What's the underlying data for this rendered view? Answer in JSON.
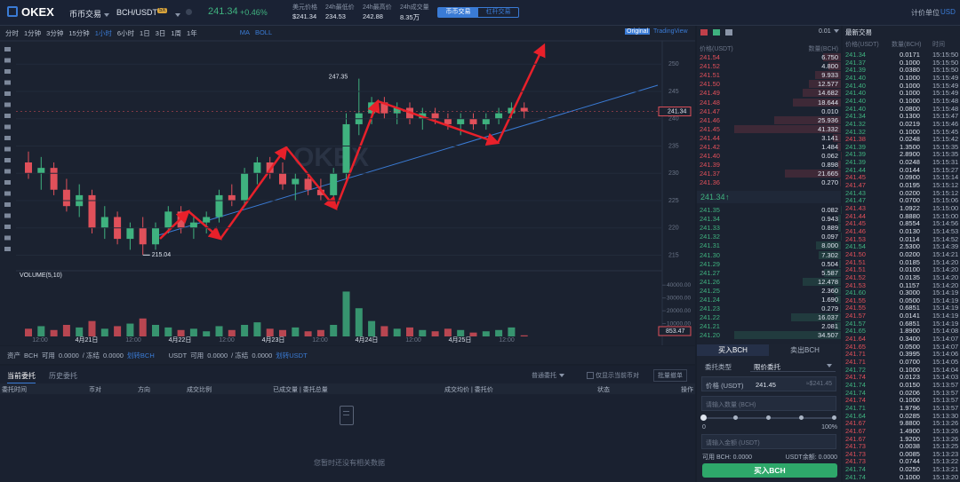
{
  "header": {
    "logo": "OKEX",
    "market": "币币交易",
    "pair": "BCH/USDT",
    "leverage": "5X",
    "price": "241.34",
    "change": "+0.46%",
    "stats": [
      {
        "label": "美元价格",
        "value": "$241.34"
      },
      {
        "label": "24h最低价",
        "value": "234.53"
      },
      {
        "label": "24h最高价",
        "value": "242.88"
      },
      {
        "label": "24h成交量",
        "value": "8.35万"
      }
    ],
    "tabs": [
      "币币交易",
      "杠杆交易"
    ],
    "unit_label": "计价单位",
    "unit": "USD"
  },
  "toolbar": {
    "intervals": [
      "分时",
      "1分钟",
      "3分钟",
      "15分钟",
      "1小时",
      "6小时",
      "1日",
      "3日",
      "1周",
      "1年"
    ],
    "indicators": [
      "MA",
      "BOLL"
    ],
    "views": [
      "Original",
      "TradingView"
    ]
  },
  "chart": {
    "watermark": "OKEX",
    "up_color": "#3fb27f",
    "down_color": "#e0505a",
    "ylim": [
      212,
      252
    ],
    "yticks": [
      215,
      220,
      225,
      230,
      235,
      240,
      245,
      250
    ],
    "candles": [
      [
        232,
        234,
        229,
        230
      ],
      [
        230,
        233,
        227,
        231
      ],
      [
        231,
        232,
        226,
        227
      ],
      [
        227,
        229,
        223,
        224
      ],
      [
        224,
        228,
        222,
        226
      ],
      [
        226,
        227,
        219,
        220
      ],
      [
        220,
        224,
        218,
        222
      ],
      [
        222,
        223,
        217,
        218
      ],
      [
        218,
        221,
        216,
        220
      ],
      [
        220,
        222,
        215.04,
        217
      ],
      [
        217,
        221,
        216,
        220
      ],
      [
        220,
        224,
        219,
        223
      ],
      [
        223,
        224,
        219,
        220
      ],
      [
        220,
        222,
        218,
        221
      ],
      [
        221,
        223,
        219,
        222
      ],
      [
        222,
        227,
        221,
        226
      ],
      [
        226,
        228,
        224,
        225
      ],
      [
        225,
        231,
        224,
        230
      ],
      [
        230,
        233,
        228,
        232
      ],
      [
        232,
        233,
        229,
        230
      ],
      [
        230,
        232,
        227,
        228
      ],
      [
        228,
        230,
        225,
        229
      ],
      [
        229,
        230,
        226,
        227
      ],
      [
        227,
        229,
        225,
        226
      ],
      [
        226,
        231,
        225,
        230
      ],
      [
        230,
        241,
        229,
        239
      ],
      [
        239,
        247.35,
        237,
        241
      ],
      [
        241,
        244,
        239,
        243
      ],
      [
        243,
        244,
        240,
        241
      ],
      [
        241,
        243,
        239,
        242
      ],
      [
        242,
        243,
        239,
        240
      ],
      [
        240,
        242,
        238,
        241
      ],
      [
        241,
        242,
        239,
        240
      ],
      [
        240,
        241,
        238,
        239
      ],
      [
        239,
        241,
        237,
        240
      ],
      [
        240,
        241,
        238,
        239
      ],
      [
        239,
        241,
        238,
        240
      ],
      [
        240,
        242,
        239,
        241
      ],
      [
        241,
        243,
        240,
        242
      ],
      [
        242,
        243,
        240,
        241.34
      ]
    ],
    "volume_label": "VOLUME(5,10)",
    "vlim": [
      0,
      45000
    ],
    "vticks": [
      {
        "value": 10000,
        "label": "10000.00"
      },
      {
        "value": 20000,
        "label": "20000.00"
      },
      {
        "value": 30000,
        "label": "30000.00"
      },
      {
        "value": 40000,
        "label": "40000.00"
      }
    ],
    "volumes": [
      6000,
      8000,
      5000,
      9000,
      7000,
      12000,
      6000,
      8000,
      10000,
      14000,
      9000,
      7000,
      5000,
      6000,
      4000,
      8000,
      5000,
      9000,
      11000,
      6000,
      5000,
      7000,
      4000,
      5000,
      9000,
      35000,
      22000,
      12000,
      8000,
      6000,
      7000,
      5000,
      4000,
      6000,
      5000,
      3000,
      4000,
      5000,
      7000,
      853.47
    ],
    "x_labels": [
      "12:00",
      "4月21日",
      "12:00",
      "4月22日",
      "12:00",
      "4月23日",
      "12:00",
      "4月24日",
      "12:00",
      "4月25日",
      "12:00"
    ]
  },
  "assets": [
    "资产",
    "BCH",
    "可用",
    "0.0000",
    "/ 冻结",
    "0.0000",
    "划转BCH",
    "USDT",
    "可用",
    "0.0000",
    "/ 冻结",
    "0.0000",
    "划转USDT"
  ],
  "orders": {
    "tabs": [
      "当前委托",
      "历史委托"
    ],
    "filter": "普通委托",
    "only_current": "仅显示当前币对",
    "batch_cancel": "批量撤单",
    "columns": [
      "委托时间",
      "币对",
      "方向",
      "成交比例",
      "已成交量 | 委托总量",
      "成交均价 | 委托价",
      "状态",
      "操作"
    ],
    "empty": "您暂时还没有相关数据"
  },
  "order_book": {
    "precision": "0.01",
    "columns": [
      "价格(USDT)",
      "数量(BCH)"
    ],
    "asks": [
      [
        "241.54",
        "6.750"
      ],
      [
        "241.52",
        "4.800"
      ],
      [
        "241.51",
        "9.933"
      ],
      [
        "241.50",
        "12.577"
      ],
      [
        "241.49",
        "14.682"
      ],
      [
        "241.48",
        "18.644"
      ],
      [
        "241.47",
        "0.010"
      ],
      [
        "241.46",
        "25.936"
      ],
      [
        "241.45",
        "41.332"
      ],
      [
        "241.44",
        "3.141"
      ],
      [
        "241.42",
        "1.484"
      ],
      [
        "241.40",
        "0.062"
      ],
      [
        "241.39",
        "0.898"
      ],
      [
        "241.37",
        "21.665"
      ],
      [
        "241.36",
        "0.270"
      ]
    ],
    "last": "241.34",
    "last_arrow": "↑",
    "bids": [
      [
        "241.35",
        "0.082"
      ],
      [
        "241.34",
        "0.943"
      ],
      [
        "241.33",
        "0.889"
      ],
      [
        "241.32",
        "0.097"
      ],
      [
        "241.31",
        "8.000"
      ],
      [
        "241.30",
        "7.302"
      ],
      [
        "241.29",
        "0.504"
      ],
      [
        "241.27",
        "5.587"
      ],
      [
        "241.26",
        "12.478"
      ],
      [
        "241.25",
        "2.360"
      ],
      [
        "241.24",
        "1.690"
      ],
      [
        "241.23",
        "0.279"
      ],
      [
        "241.22",
        "16.037"
      ],
      [
        "241.21",
        "2.081"
      ],
      [
        "241.20",
        "34.507"
      ]
    ]
  },
  "trade_form": {
    "tabs": [
      "买入BCH",
      "卖出BCH"
    ],
    "type_label": "委托类型",
    "type_value": "限价委托",
    "price_label": "价格 (USDT)",
    "price_value": "241.45",
    "price_usd": "≈$241.45",
    "amount_placeholder": "请输入数量 (BCH)",
    "slider_min": "0",
    "slider_max": "100%",
    "total_placeholder": "请输入金额 (USDT)",
    "available": "可用 BCH: 0.0000",
    "balance": "USDT余额: 0.0000",
    "submit": "买入BCH"
  },
  "trades": {
    "title": "最新交易",
    "columns": [
      "价格(USDT)",
      "数量(BCH)",
      "时间"
    ],
    "buy_color": "#3fb27f",
    "sell_color": "#e0505a",
    "rows": [
      [
        "241.34",
        "0.0171",
        "15:15:50",
        "buy"
      ],
      [
        "241.37",
        "0.1000",
        "15:15:50",
        "buy"
      ],
      [
        "241.39",
        "0.0380",
        "15:15:50",
        "buy"
      ],
      [
        "241.40",
        "0.1000",
        "15:15:49",
        "buy"
      ],
      [
        "241.40",
        "0.1000",
        "15:15:49",
        "buy"
      ],
      [
        "241.40",
        "0.1000",
        "15:15:49",
        "buy"
      ],
      [
        "241.40",
        "0.1000",
        "15:15:48",
        "buy"
      ],
      [
        "241.40",
        "0.0800",
        "15:15:48",
        "buy"
      ],
      [
        "241.34",
        "0.1300",
        "15:15:47",
        "buy"
      ],
      [
        "241.32",
        "0.0219",
        "15:15:46",
        "buy"
      ],
      [
        "241.32",
        "0.1000",
        "15:15:45",
        "buy"
      ],
      [
        "241.38",
        "0.0248",
        "15:15:42",
        "sell"
      ],
      [
        "241.39",
        "1.3500",
        "15:15:35",
        "buy"
      ],
      [
        "241.39",
        "2.8900",
        "15:15:35",
        "buy"
      ],
      [
        "241.39",
        "0.0248",
        "15:15:31",
        "buy"
      ],
      [
        "241.44",
        "0.0144",
        "15:15:27",
        "buy"
      ],
      [
        "241.45",
        "0.0900",
        "15:15:14",
        "sell"
      ],
      [
        "241.47",
        "0.0195",
        "15:15:12",
        "sell"
      ],
      [
        "241.43",
        "0.0200",
        "15:15:12",
        "buy"
      ],
      [
        "241.47",
        "0.0700",
        "15:15:06",
        "buy"
      ],
      [
        "241.43",
        "1.0922",
        "15:15:00",
        "sell"
      ],
      [
        "241.44",
        "0.8880",
        "15:15:00",
        "sell"
      ],
      [
        "241.45",
        "0.8554",
        "15:14:56",
        "sell"
      ],
      [
        "241.46",
        "0.0130",
        "15:14:53",
        "sell"
      ],
      [
        "241.53",
        "0.0114",
        "15:14:52",
        "sell"
      ],
      [
        "241.54",
        "2.5300",
        "15:14:39",
        "buy"
      ],
      [
        "241.50",
        "0.0200",
        "15:14:21",
        "sell"
      ],
      [
        "241.51",
        "0.0185",
        "15:14:20",
        "sell"
      ],
      [
        "241.51",
        "0.0100",
        "15:14:20",
        "sell"
      ],
      [
        "241.52",
        "0.0135",
        "15:14:20",
        "sell"
      ],
      [
        "241.53",
        "0.1157",
        "15:14:20",
        "sell"
      ],
      [
        "241.60",
        "0.3000",
        "15:14:19",
        "buy"
      ],
      [
        "241.55",
        "0.0500",
        "15:14:19",
        "sell"
      ],
      [
        "241.55",
        "0.6851",
        "15:14:19",
        "sell"
      ],
      [
        "241.57",
        "0.0141",
        "15:14:19",
        "sell"
      ],
      [
        "241.57",
        "0.6851",
        "15:14:19",
        "buy"
      ],
      [
        "241.65",
        "1.8900",
        "15:14:08",
        "buy"
      ],
      [
        "241.64",
        "0.3400",
        "15:14:07",
        "sell"
      ],
      [
        "241.65",
        "0.0500",
        "15:14:07",
        "sell"
      ],
      [
        "241.71",
        "0.3995",
        "15:14:06",
        "sell"
      ],
      [
        "241.71",
        "0.0700",
        "15:14:05",
        "sell"
      ],
      [
        "241.72",
        "0.1000",
        "15:14:04",
        "buy"
      ],
      [
        "241.74",
        "0.0123",
        "15:14:03",
        "sell"
      ],
      [
        "241.74",
        "0.0150",
        "15:13:57",
        "buy"
      ],
      [
        "241.74",
        "0.0206",
        "15:13:57",
        "buy"
      ],
      [
        "241.74",
        "0.1000",
        "15:13:57",
        "sell"
      ],
      [
        "241.71",
        "1.9796",
        "15:13:57",
        "buy"
      ],
      [
        "241.64",
        "0.0285",
        "15:13:30",
        "buy"
      ],
      [
        "241.67",
        "9.8800",
        "15:13:26",
        "sell"
      ],
      [
        "241.67",
        "1.4900",
        "15:13:26",
        "sell"
      ],
      [
        "241.67",
        "1.9200",
        "15:13:26",
        "sell"
      ],
      [
        "241.73",
        "0.0038",
        "15:13:25",
        "sell"
      ],
      [
        "241.73",
        "0.0085",
        "15:13:23",
        "sell"
      ],
      [
        "241.73",
        "0.0744",
        "15:13:22",
        "sell"
      ],
      [
        "241.74",
        "0.0250",
        "15:13:21",
        "buy"
      ],
      [
        "241.74",
        "0.1000",
        "15:13:20",
        "buy"
      ]
    ]
  }
}
